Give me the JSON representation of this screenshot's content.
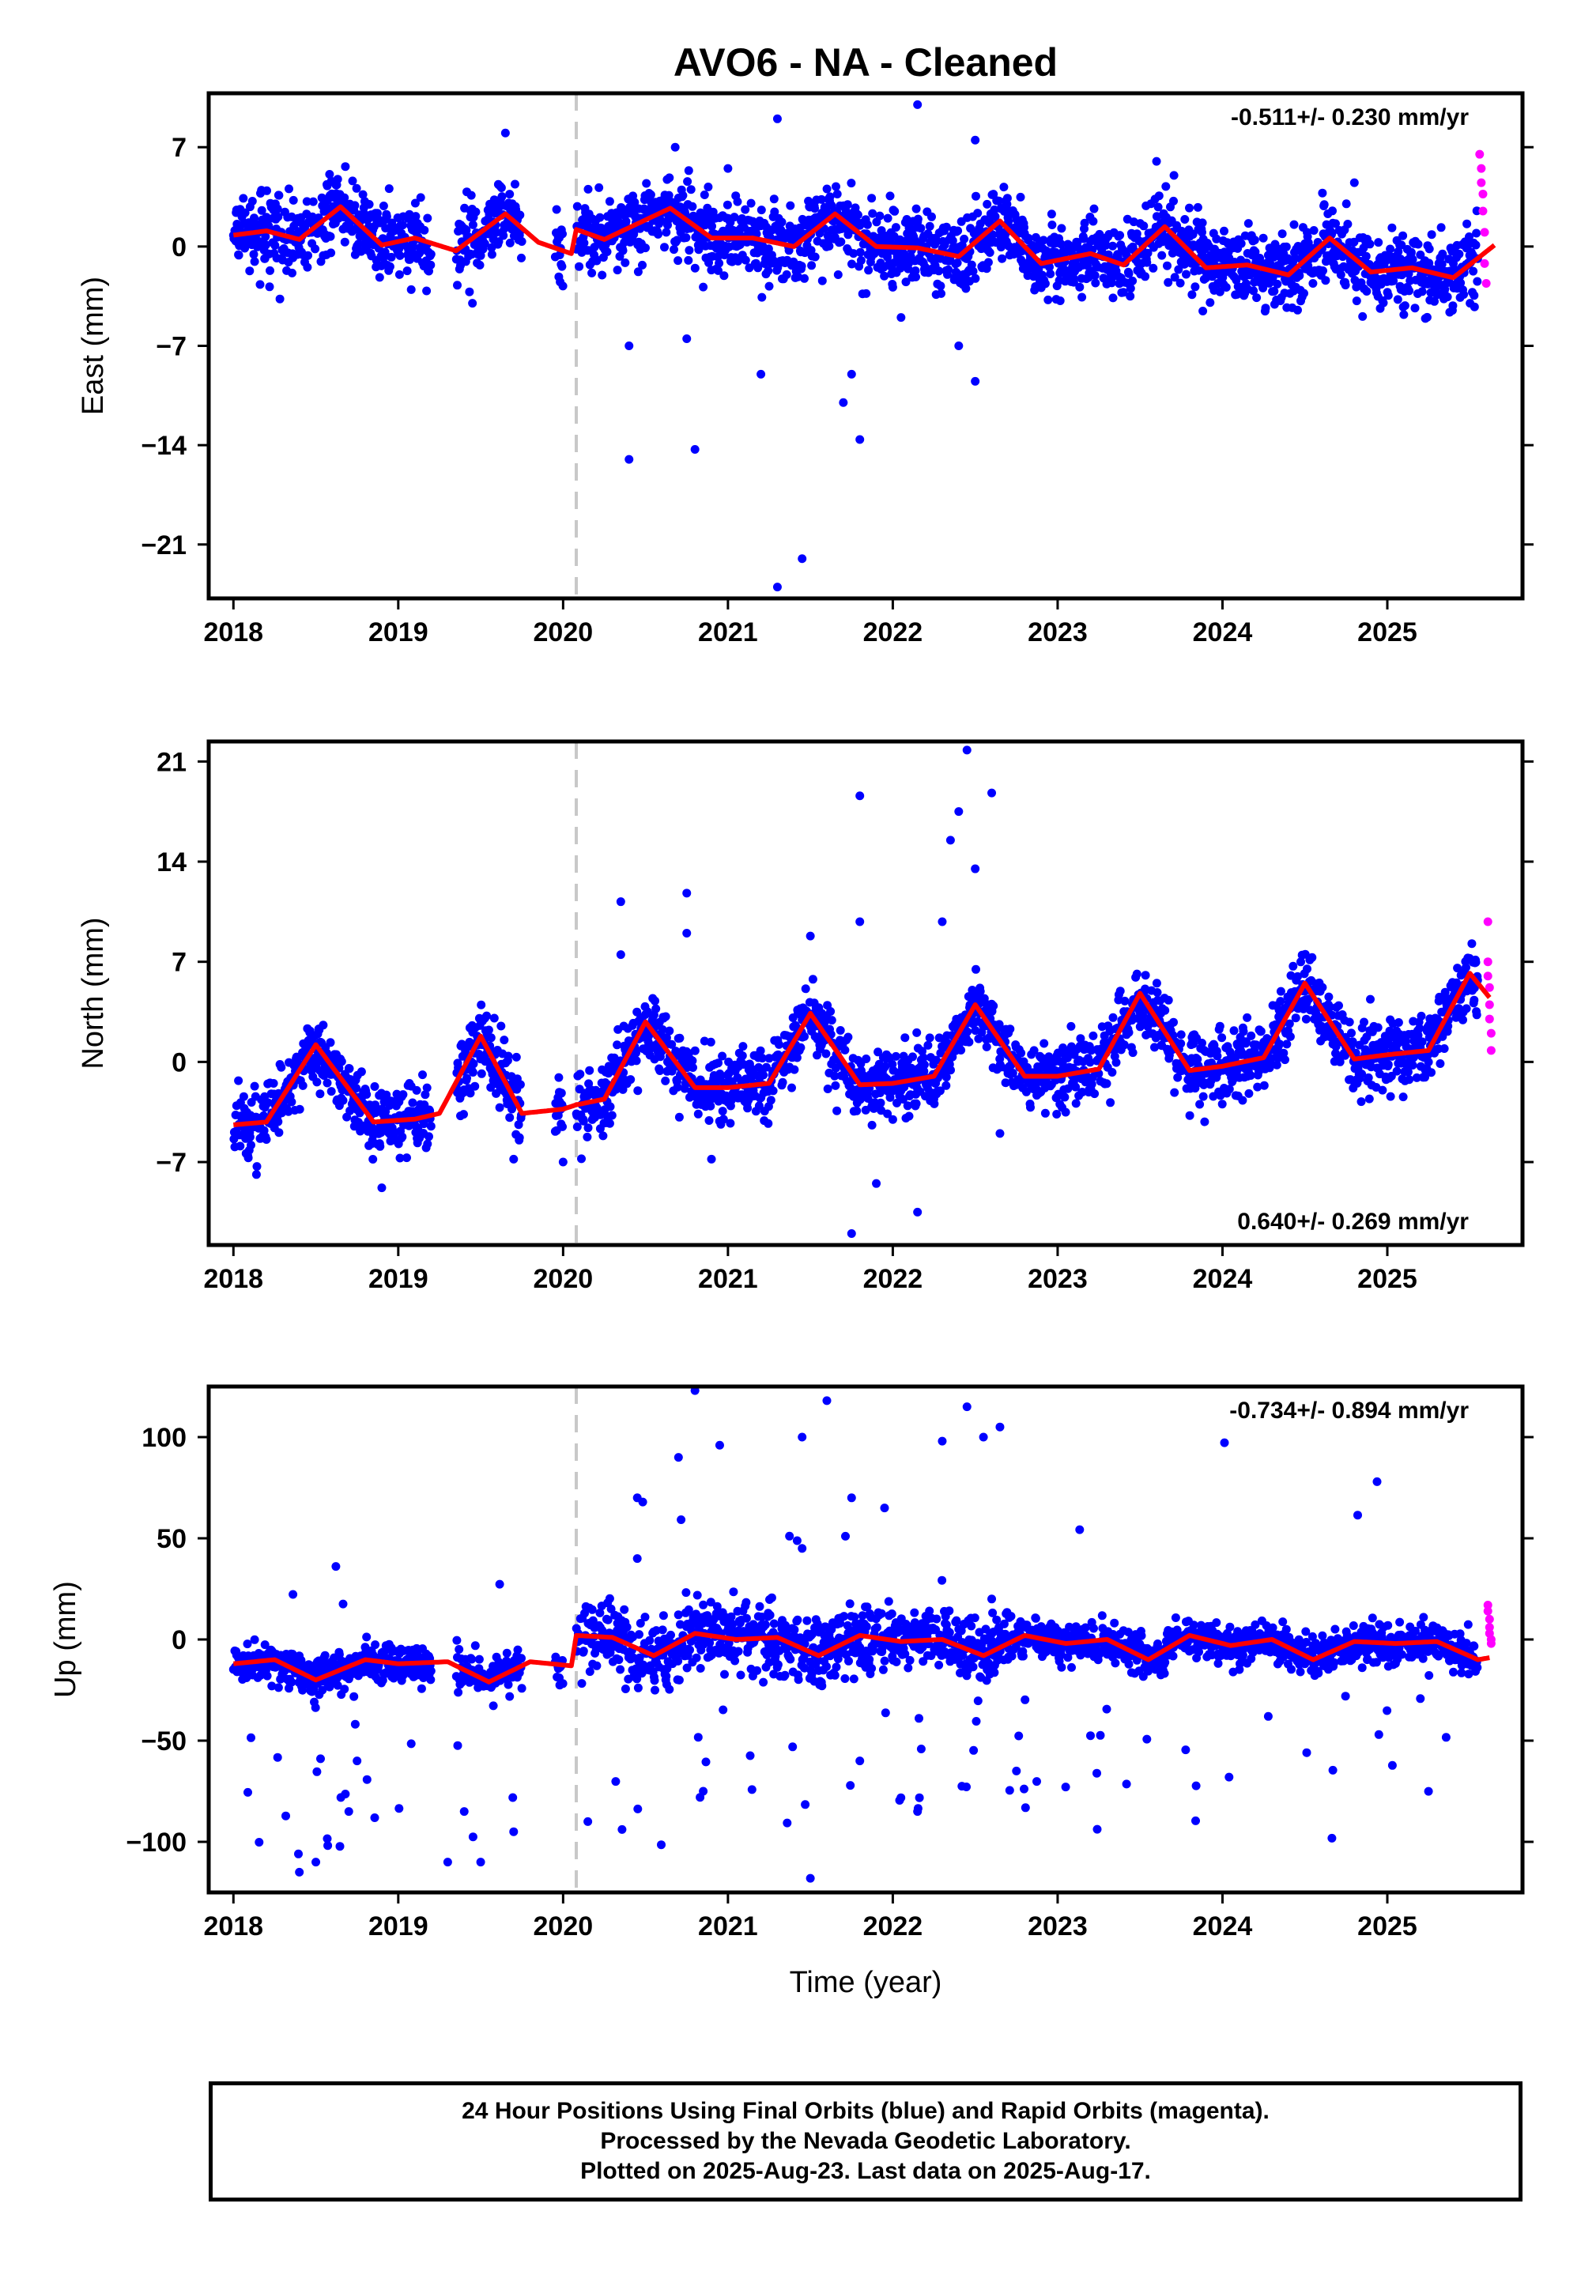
{
  "title": "AVO6  - NA - Cleaned",
  "xlabel": "Time (year)",
  "footer": {
    "line1": "24 Hour Positions Using Final Orbits (blue) and Rapid Orbits (magenta).",
    "line2": "Processed by the Nevada Geodetic Laboratory.",
    "line3": "Plotted on 2025-Aug-23. Last data on 2025-Aug-17."
  },
  "colors": {
    "final": "#0000ff",
    "rapid": "#ff00ff",
    "model": "#ff0000",
    "break_line": "#c8c8c8"
  },
  "chart_data": [
    {
      "type": "scatter",
      "ylabel": "East (mm)",
      "rate": "-0.511+/- 0.230 mm/yr",
      "xlim": [
        2017.85,
        2025.82
      ],
      "ylim": [
        -24.8,
        10.8
      ],
      "x_ticks": [
        2018,
        2019,
        2020,
        2021,
        2022,
        2023,
        2024,
        2025
      ],
      "y_ticks": [
        7,
        0,
        -7,
        -14,
        -21
      ],
      "y_tick_labels": [
        "7",
        "0",
        "−7",
        "−14",
        "−21"
      ],
      "break_epoch": 2020.08,
      "model": {
        "x": [
          2018.0,
          2018.2,
          2018.4,
          2018.65,
          2018.9,
          2019.1,
          2019.35,
          2019.65,
          2019.85,
          2020.05,
          2020.08,
          2020.25,
          2020.65,
          2020.9,
          2021.15,
          2021.4,
          2021.65,
          2021.9,
          2022.15,
          2022.4,
          2022.65,
          2022.9,
          2023.2,
          2023.4,
          2023.65,
          2023.9,
          2024.15,
          2024.4,
          2024.65,
          2024.9,
          2025.15,
          2025.4,
          2025.65
        ],
        "y": [
          0.8,
          1.1,
          0.5,
          2.8,
          0.1,
          0.6,
          -0.3,
          2.3,
          0.3,
          -0.5,
          1.2,
          0.5,
          2.7,
          0.6,
          0.6,
          0.0,
          2.3,
          0.0,
          -0.1,
          -0.7,
          1.8,
          -1.2,
          -0.5,
          -1.3,
          1.4,
          -1.5,
          -1.3,
          -2.0,
          0.6,
          -1.8,
          -1.5,
          -2.2,
          0.1
        ]
      },
      "final_scatter": {
        "noise_sd": 1.3
      },
      "outliers": [
        [
          2020.4,
          -15.0
        ],
        [
          2020.4,
          -7.0
        ],
        [
          2020.75,
          -6.5
        ],
        [
          2020.8,
          -14.3
        ],
        [
          2021.2,
          -9.0
        ],
        [
          2021.3,
          9.0
        ],
        [
          2021.45,
          -22.0
        ],
        [
          2021.3,
          -24.0
        ],
        [
          2021.7,
          -11.0
        ],
        [
          2021.8,
          -13.6
        ],
        [
          2021.75,
          -9.0
        ],
        [
          2022.15,
          10.0
        ],
        [
          2022.4,
          -7.0
        ],
        [
          2022.5,
          -9.5
        ],
        [
          2022.5,
          7.5
        ],
        [
          2020.68,
          7.0
        ],
        [
          2019.65,
          8.0
        ],
        [
          2019.45,
          -4.0
        ],
        [
          2021.25,
          -2.8
        ],
        [
          2021.0,
          5.5
        ],
        [
          2022.05,
          -5.0
        ],
        [
          2023.6,
          6.0
        ],
        [
          2024.8,
          4.5
        ],
        [
          2025.1,
          -4.8
        ]
      ],
      "rapid": [
        [
          2025.56,
          6.5
        ],
        [
          2025.57,
          5.5
        ],
        [
          2025.57,
          4.5
        ],
        [
          2025.58,
          3.7
        ],
        [
          2025.58,
          2.5
        ],
        [
          2025.59,
          1.0
        ],
        [
          2025.59,
          -1.2
        ],
        [
          2025.6,
          -2.6
        ]
      ]
    },
    {
      "type": "scatter",
      "ylabel": "North (mm)",
      "rate": "0.640+/- 0.269 mm/yr",
      "xlim": [
        2017.85,
        2025.82
      ],
      "ylim": [
        -12.8,
        22.4
      ],
      "x_ticks": [
        2018,
        2019,
        2020,
        2021,
        2022,
        2023,
        2024,
        2025
      ],
      "y_ticks": [
        21,
        14,
        7,
        0,
        -7
      ],
      "y_tick_labels": [
        "21",
        "14",
        "7",
        "0",
        "−7"
      ],
      "break_epoch": 2020.08,
      "model": {
        "x": [
          2018.0,
          2018.2,
          2018.5,
          2018.85,
          2019.1,
          2019.25,
          2019.5,
          2019.75,
          2020.0,
          2020.08,
          2020.25,
          2020.5,
          2020.8,
          2021.0,
          2021.25,
          2021.5,
          2021.8,
          2022.0,
          2022.25,
          2022.5,
          2022.8,
          2023.0,
          2023.25,
          2023.5,
          2023.8,
          2024.0,
          2024.25,
          2024.5,
          2024.8,
          2025.0,
          2025.25,
          2025.5,
          2025.62
        ],
        "y": [
          -4.4,
          -4.2,
          1.2,
          -4.2,
          -4.0,
          -3.6,
          1.8,
          -3.6,
          -3.3,
          -3.0,
          -2.6,
          2.8,
          -1.8,
          -1.8,
          -1.5,
          3.4,
          -1.6,
          -1.5,
          -1.0,
          4.0,
          -1.0,
          -1.0,
          -0.5,
          4.8,
          -0.6,
          -0.3,
          0.3,
          5.5,
          0.2,
          0.5,
          0.8,
          6.2,
          4.5
        ]
      },
      "final_scatter": {
        "noise_sd": 1.2
      },
      "outliers": [
        [
          2020.35,
          11.2
        ],
        [
          2020.35,
          7.5
        ],
        [
          2020.75,
          11.8
        ],
        [
          2020.75,
          9.0
        ],
        [
          2021.8,
          18.6
        ],
        [
          2021.8,
          9.8
        ],
        [
          2022.3,
          9.8
        ],
        [
          2022.35,
          15.5
        ],
        [
          2022.4,
          17.5
        ],
        [
          2022.45,
          21.8
        ],
        [
          2022.5,
          13.5
        ],
        [
          2022.6,
          18.8
        ],
        [
          2021.75,
          -12.0
        ],
        [
          2022.15,
          -10.5
        ],
        [
          2021.5,
          8.8
        ],
        [
          2018.9,
          -8.8
        ],
        [
          2020.0,
          -7.0
        ],
        [
          2019.7,
          -6.8
        ],
        [
          2020.9,
          -6.8
        ],
        [
          2021.9,
          -8.5
        ],
        [
          2022.65,
          -5.0
        ]
      ],
      "rapid": [
        [
          2025.61,
          9.8
        ],
        [
          2025.61,
          7.0
        ],
        [
          2025.61,
          6.0
        ],
        [
          2025.62,
          5.2
        ],
        [
          2025.62,
          4.0
        ],
        [
          2025.62,
          3.0
        ],
        [
          2025.63,
          2.0
        ],
        [
          2025.63,
          0.8
        ]
      ]
    },
    {
      "type": "scatter",
      "ylabel": "Up (mm)",
      "rate": "-0.734+/- 0.894 mm/yr",
      "xlim": [
        2017.85,
        2025.82
      ],
      "ylim": [
        -125,
        125
      ],
      "x_ticks": [
        2018,
        2019,
        2020,
        2021,
        2022,
        2023,
        2024,
        2025
      ],
      "y_ticks": [
        100,
        50,
        0,
        -50,
        -100
      ],
      "y_tick_labels": [
        "100",
        "50",
        "0",
        "−50",
        "−100"
      ],
      "break_epoch": 2020.08,
      "model": {
        "x": [
          2018.0,
          2018.25,
          2018.5,
          2018.8,
          2019.0,
          2019.3,
          2019.55,
          2019.8,
          2020.05,
          2020.08,
          2020.3,
          2020.55,
          2020.8,
          2021.05,
          2021.3,
          2021.55,
          2021.8,
          2022.05,
          2022.3,
          2022.55,
          2022.8,
          2023.05,
          2023.3,
          2023.55,
          2023.8,
          2024.05,
          2024.3,
          2024.55,
          2024.8,
          2025.05,
          2025.3,
          2025.55,
          2025.62
        ],
        "y": [
          -12,
          -10,
          -20,
          -10,
          -12,
          -11,
          -21,
          -11,
          -13,
          2,
          1,
          -8,
          3,
          0,
          1,
          -8,
          2,
          -1,
          0,
          -8,
          2,
          -2,
          0,
          -10,
          2,
          -3,
          0,
          -10,
          -1,
          -2,
          -1,
          -10,
          -9
        ]
      },
      "final_scatter": {
        "noise_sd": 4.5
      },
      "outliers": [
        [
          2020.8,
          123
        ],
        [
          2020.95,
          96
        ],
        [
          2021.45,
          100
        ],
        [
          2021.45,
          45
        ],
        [
          2021.6,
          118
        ],
        [
          2021.75,
          70
        ],
        [
          2021.95,
          65
        ],
        [
          2022.3,
          98
        ],
        [
          2022.45,
          115
        ],
        [
          2022.55,
          100
        ],
        [
          2022.65,
          105
        ],
        [
          2020.7,
          90
        ],
        [
          2020.45,
          70
        ],
        [
          2020.45,
          40
        ],
        [
          2021.5,
          -118
        ],
        [
          2022.15,
          -85
        ],
        [
          2022.75,
          -65
        ],
        [
          2018.4,
          -115
        ],
        [
          2018.5,
          -110
        ],
        [
          2018.7,
          -85
        ],
        [
          2019.3,
          -110
        ],
        [
          2019.5,
          -110
        ],
        [
          2019.7,
          -95
        ],
        [
          2020.15,
          -90
        ],
        [
          2020.85,
          -75
        ],
        [
          2018.75,
          -60
        ],
        [
          2019.4,
          -85
        ],
        [
          2021.8,
          -60
        ],
        [
          2022.6,
          20
        ]
      ],
      "rapid": [
        [
          2025.61,
          17
        ],
        [
          2025.61,
          14
        ],
        [
          2025.62,
          10
        ],
        [
          2025.62,
          6
        ],
        [
          2025.62,
          3
        ],
        [
          2025.63,
          0
        ],
        [
          2025.63,
          -2
        ]
      ]
    }
  ]
}
